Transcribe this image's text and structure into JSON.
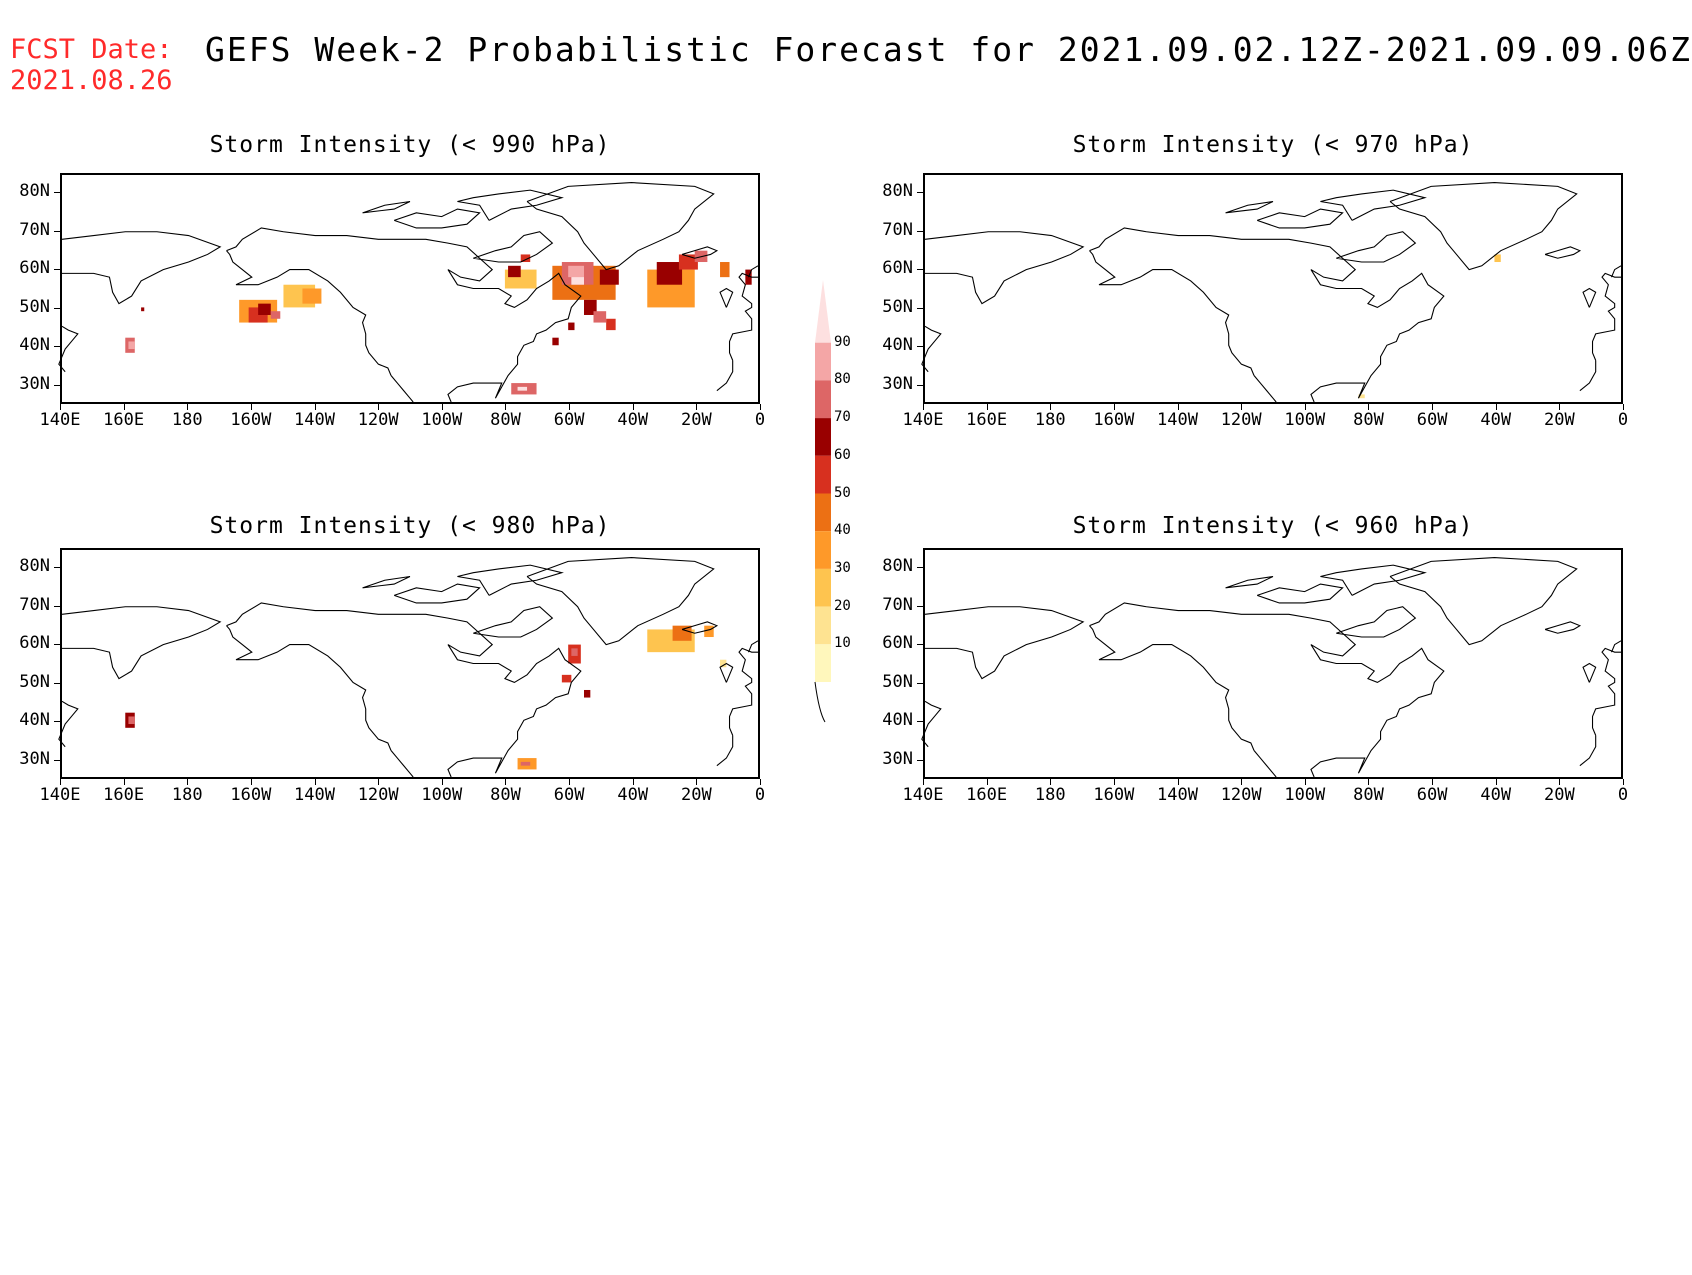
{
  "header": {
    "fcst_line1": "FCST Date:",
    "fcst_line2": "2021.08.26",
    "title": "GEFS Week-2 Probabilistic Forecast for 2021.09.02.12Z-2021.09.09.06Z",
    "fcst_color": "#ff2a2a"
  },
  "axes": {
    "lat_labels": [
      "80N",
      "70N",
      "60N",
      "50N",
      "40N",
      "30N"
    ],
    "lon_labels": [
      "140E",
      "160E",
      "180",
      "160W",
      "140W",
      "120W",
      "100W",
      "80W",
      "60W",
      "40W",
      "20W",
      "0"
    ],
    "lat_range": [
      25,
      85
    ],
    "lon_range": [
      140,
      360
    ]
  },
  "panels": [
    {
      "id": "p990",
      "title": "Storm Intensity (< 990 hPa)",
      "level_hpa": 990
    },
    {
      "id": "p970",
      "title": "Storm Intensity (< 970 hPa)",
      "level_hpa": 970
    },
    {
      "id": "p980",
      "title": "Storm Intensity (< 980 hPa)",
      "level_hpa": 980
    },
    {
      "id": "p960",
      "title": "Storm Intensity (< 960 hPa)",
      "level_hpa": 960
    }
  ],
  "colorbar": {
    "levels": [
      "10",
      "20",
      "30",
      "40",
      "50",
      "60",
      "70",
      "80",
      "90"
    ],
    "colors": [
      "#fff7bc",
      "#fee391",
      "#fec44f",
      "#fe9929",
      "#ec7014",
      "#d7301f",
      "#990000",
      "#dd6666",
      "#f4a6a6",
      "#fde0e0"
    ]
  }
}
